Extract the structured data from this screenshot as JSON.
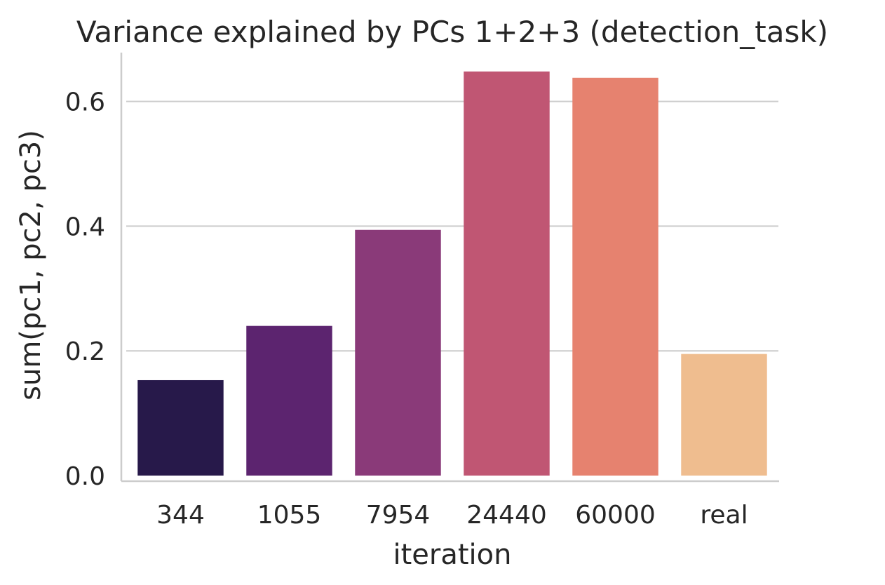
{
  "chart_data": {
    "type": "bar",
    "title": "Variance explained by PCs 1+2+3 (detection_task)",
    "xlabel": "iteration",
    "ylabel": "sum(pc1, pc2, pc3)",
    "categories": [
      "344",
      "1055",
      "7954",
      "24440",
      "60000",
      "real"
    ],
    "values": [
      0.153,
      0.24,
      0.394,
      0.648,
      0.638,
      0.195
    ],
    "colors": [
      "#27194a",
      "#5c246f",
      "#8a3a79",
      "#c05673",
      "#e6826f",
      "#efbd8f"
    ],
    "ylim": [
      0,
      0.68
    ],
    "yticks": [
      0.0,
      0.2,
      0.4,
      0.6
    ],
    "ytick_labels": [
      "0.0",
      "0.2",
      "0.4",
      "0.6"
    ],
    "grid": "horizontal",
    "legend": "none"
  }
}
